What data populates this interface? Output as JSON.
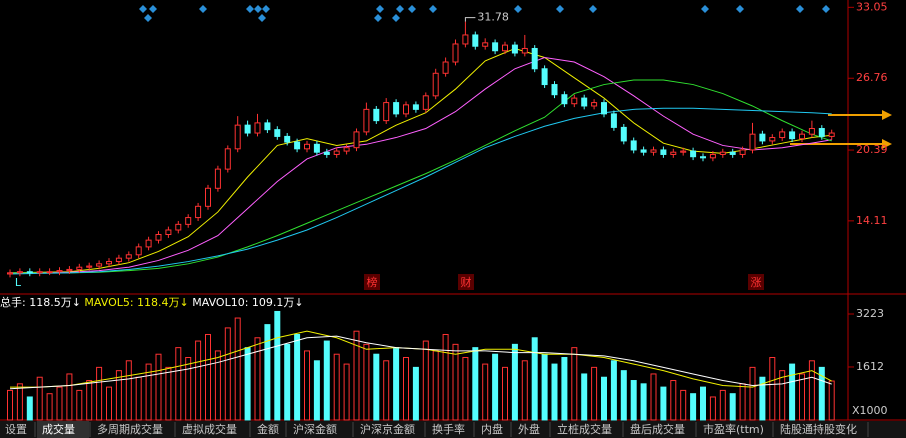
{
  "chart_data": [
    {
      "type": "candlestick",
      "ylim": [
        7.8,
        33.7
      ],
      "yticks": [
        14.11,
        20.39,
        26.76,
        33.05
      ],
      "open": [
        9.4,
        9.5,
        9.6,
        9.5,
        9.6,
        9.6,
        9.7,
        9.8,
        10.0,
        10.1,
        10.3,
        10.5,
        10.8,
        11.1,
        11.8,
        12.4,
        12.9,
        13.3,
        13.8,
        14.4,
        15.4,
        17.0,
        18.7,
        20.5,
        22.6,
        21.9,
        22.8,
        22.2,
        21.6,
        21.1,
        20.5,
        20.9,
        20.2,
        20.0,
        20.3,
        20.6,
        22.0,
        24.0,
        23.0,
        24.6,
        23.6,
        24.4,
        24.0,
        25.2,
        27.2,
        28.2,
        29.8,
        30.6,
        29.6,
        29.9,
        29.2,
        29.7,
        29.0,
        29.4,
        27.6,
        26.2,
        25.3,
        24.5,
        25.0,
        24.3,
        24.6,
        23.6,
        22.4,
        21.2,
        20.4,
        20.2,
        20.4,
        20.0,
        20.2,
        20.3,
        19.8,
        19.7,
        20.0,
        20.2,
        20.0,
        20.4,
        21.8,
        21.2,
        21.5,
        22.0,
        21.4,
        21.8,
        22.3,
        21.6
      ],
      "high": [
        9.8,
        9.9,
        9.9,
        9.9,
        9.9,
        10.0,
        10.1,
        10.3,
        10.4,
        10.6,
        10.8,
        11.1,
        11.4,
        12.1,
        12.7,
        13.2,
        13.6,
        14.1,
        14.7,
        15.7,
        17.3,
        19.0,
        20.8,
        23.4,
        23.0,
        23.6,
        23.1,
        22.5,
        21.9,
        21.4,
        21.2,
        21.2,
        20.5,
        20.6,
        20.9,
        22.3,
        24.6,
        24.3,
        25.0,
        24.9,
        24.7,
        24.7,
        25.5,
        27.6,
        28.6,
        30.2,
        31.78,
        30.9,
        30.3,
        30.2,
        30.0,
        30.0,
        30.6,
        29.7,
        27.9,
        26.5,
        25.6,
        25.3,
        25.3,
        24.9,
        24.9,
        23.9,
        22.7,
        21.5,
        20.7,
        20.7,
        20.7,
        20.5,
        20.6,
        20.6,
        20.1,
        20.3,
        20.5,
        20.5,
        20.7,
        22.8,
        22.1,
        21.8,
        22.3,
        22.3,
        22.1,
        23.0,
        22.6,
        22.2
      ],
      "low": [
        9.1,
        9.2,
        9.2,
        9.2,
        9.3,
        9.3,
        9.4,
        9.5,
        9.7,
        9.8,
        10.0,
        10.2,
        10.5,
        10.8,
        11.5,
        12.1,
        12.6,
        13.0,
        13.5,
        14.1,
        15.1,
        16.7,
        18.4,
        20.2,
        21.6,
        21.6,
        21.9,
        21.3,
        20.8,
        20.2,
        20.2,
        19.9,
        19.7,
        19.7,
        20.0,
        20.3,
        21.7,
        22.7,
        22.7,
        23.3,
        23.3,
        23.7,
        23.7,
        24.9,
        26.9,
        27.9,
        29.5,
        29.3,
        29.3,
        28.9,
        28.9,
        28.7,
        28.7,
        27.3,
        25.9,
        25.0,
        24.2,
        24.2,
        24.0,
        24.0,
        23.3,
        22.1,
        20.9,
        20.1,
        19.9,
        19.9,
        19.7,
        19.7,
        19.9,
        19.5,
        19.4,
        19.4,
        19.7,
        19.7,
        19.7,
        20.1,
        20.9,
        20.9,
        21.2,
        21.1,
        21.1,
        21.5,
        21.3,
        21.3
      ],
      "close": [
        9.5,
        9.6,
        9.5,
        9.6,
        9.6,
        9.7,
        9.8,
        10.0,
        10.1,
        10.3,
        10.5,
        10.8,
        11.1,
        11.8,
        12.4,
        12.9,
        13.3,
        13.8,
        14.4,
        15.4,
        17.0,
        18.7,
        20.5,
        22.6,
        21.9,
        22.8,
        22.2,
        21.6,
        21.1,
        20.5,
        20.9,
        20.2,
        20.0,
        20.3,
        20.6,
        22.0,
        24.0,
        23.0,
        24.6,
        23.6,
        24.4,
        24.0,
        25.2,
        27.2,
        28.2,
        29.8,
        30.6,
        29.6,
        29.9,
        29.2,
        29.7,
        29.0,
        29.4,
        27.6,
        26.2,
        25.3,
        24.5,
        25.0,
        24.3,
        24.6,
        23.6,
        22.4,
        21.2,
        20.4,
        20.2,
        20.4,
        20.0,
        20.2,
        20.3,
        19.8,
        19.7,
        20.0,
        20.2,
        20.0,
        20.4,
        21.8,
        21.2,
        21.5,
        22.0,
        21.4,
        21.8,
        22.3,
        21.6,
        21.9
      ],
      "ma_x": [
        0,
        3,
        6,
        9,
        12,
        15,
        18,
        21,
        24,
        27,
        30,
        33,
        36,
        39,
        42,
        45,
        48,
        51,
        54,
        57,
        60,
        63,
        66,
        69,
        72,
        75,
        78,
        81,
        83
      ],
      "lines": [
        {
          "color": "#f0f000",
          "values": [
            9.5,
            9.55,
            9.6,
            9.9,
            10.4,
            11.4,
            12.7,
            14.9,
            18.0,
            20.8,
            21.4,
            20.8,
            21.2,
            22.6,
            23.7,
            25.8,
            28.3,
            29.4,
            28.6,
            26.8,
            25.0,
            22.8,
            21.0,
            20.3,
            20.1,
            20.5,
            21.0,
            21.5,
            21.7
          ]
        },
        {
          "color": "#ff60ff",
          "values": [
            9.5,
            9.5,
            9.55,
            9.7,
            10.0,
            10.6,
            11.5,
            12.8,
            15.2,
            17.6,
            19.6,
            20.6,
            20.9,
            21.5,
            22.3,
            23.8,
            25.8,
            27.6,
            28.6,
            28.2,
            26.9,
            25.2,
            23.4,
            21.8,
            20.8,
            20.4,
            20.6,
            21.0,
            21.3
          ]
        },
        {
          "color": "#30e030",
          "values": [
            9.5,
            9.5,
            9.5,
            9.55,
            9.7,
            9.9,
            10.3,
            10.9,
            11.8,
            12.8,
            13.9,
            15.0,
            16.1,
            17.2,
            18.3,
            19.5,
            20.8,
            22.1,
            23.3,
            25.4,
            26.2,
            26.6,
            26.6,
            26.2,
            25.4,
            24.3,
            23.0,
            21.8,
            21.2
          ]
        },
        {
          "color": "#20c8f0",
          "values": [
            9.4,
            9.45,
            9.5,
            9.6,
            9.8,
            10.1,
            10.5,
            11.0,
            11.6,
            12.4,
            13.3,
            14.4,
            15.6,
            16.8,
            18.0,
            19.3,
            20.6,
            21.6,
            22.5,
            23.2,
            23.7,
            24.0,
            24.1,
            24.1,
            24.0,
            23.9,
            23.8,
            23.7,
            23.6
          ]
        }
      ],
      "max_label": 31.78,
      "markers": [
        "L",
        "榜",
        "财",
        "涨"
      ]
    },
    {
      "type": "bar",
      "title": "总手: 118.5万↓",
      "unit_label": "X1000",
      "ylim": [
        0,
        3770
      ],
      "yticks": [
        1612,
        3223
      ],
      "values": [
        900,
        1100,
        700,
        1300,
        800,
        1000,
        1400,
        900,
        1200,
        1600,
        1000,
        1500,
        1800,
        1300,
        1700,
        2000,
        1600,
        2200,
        1900,
        2400,
        2600,
        2100,
        2800,
        3100,
        2200,
        2500,
        2900,
        3300,
        2300,
        2600,
        2100,
        1800,
        2400,
        2000,
        1700,
        2700,
        2300,
        2000,
        1800,
        2200,
        1900,
        1600,
        2400,
        2100,
        2600,
        2300,
        1900,
        2200,
        1700,
        2000,
        1600,
        2300,
        1800,
        2500,
        2000,
        1700,
        1900,
        2200,
        1400,
        1600,
        1300,
        1800,
        1500,
        1200,
        1100,
        1400,
        1000,
        1200,
        900,
        800,
        1000,
        700,
        900,
        800,
        1100,
        1600,
        1300,
        1900,
        1500,
        1700,
        1400,
        1800,
        1600,
        1185
      ],
      "series": [
        {
          "name": "MAVOL5: 118.4万↓",
          "color": "#f0f000",
          "values": [
            1000,
            1000,
            1050,
            1200,
            1350,
            1500,
            1700,
            1900,
            2200,
            2500,
            2700,
            2500,
            2150,
            2200,
            2150,
            2000,
            2150,
            2150,
            2000,
            2000,
            1900,
            1700,
            1500,
            1250,
            1050,
            1000,
            1300,
            1500,
            1184
          ]
        },
        {
          "name": "MAVOL10: 109.1万↓",
          "color": "#ffffff",
          "values": [
            950,
            1000,
            1050,
            1150,
            1250,
            1400,
            1550,
            1750,
            2000,
            2250,
            2500,
            2550,
            2350,
            2200,
            2150,
            2100,
            2100,
            2050,
            2050,
            2000,
            1950,
            1800,
            1600,
            1400,
            1200,
            1050,
            1100,
            1300,
            1091
          ]
        }
      ]
    }
  ],
  "tabs": [
    "设置",
    "成交量",
    "多周期成交量",
    "虚拟成交量",
    "金额",
    "沪深金额",
    "沪深京金额",
    "换手率",
    "内盘",
    "外盘",
    "立桩成交量",
    "盘后成交量",
    "市盈率(ttm)",
    "陆股通持股变化"
  ]
}
